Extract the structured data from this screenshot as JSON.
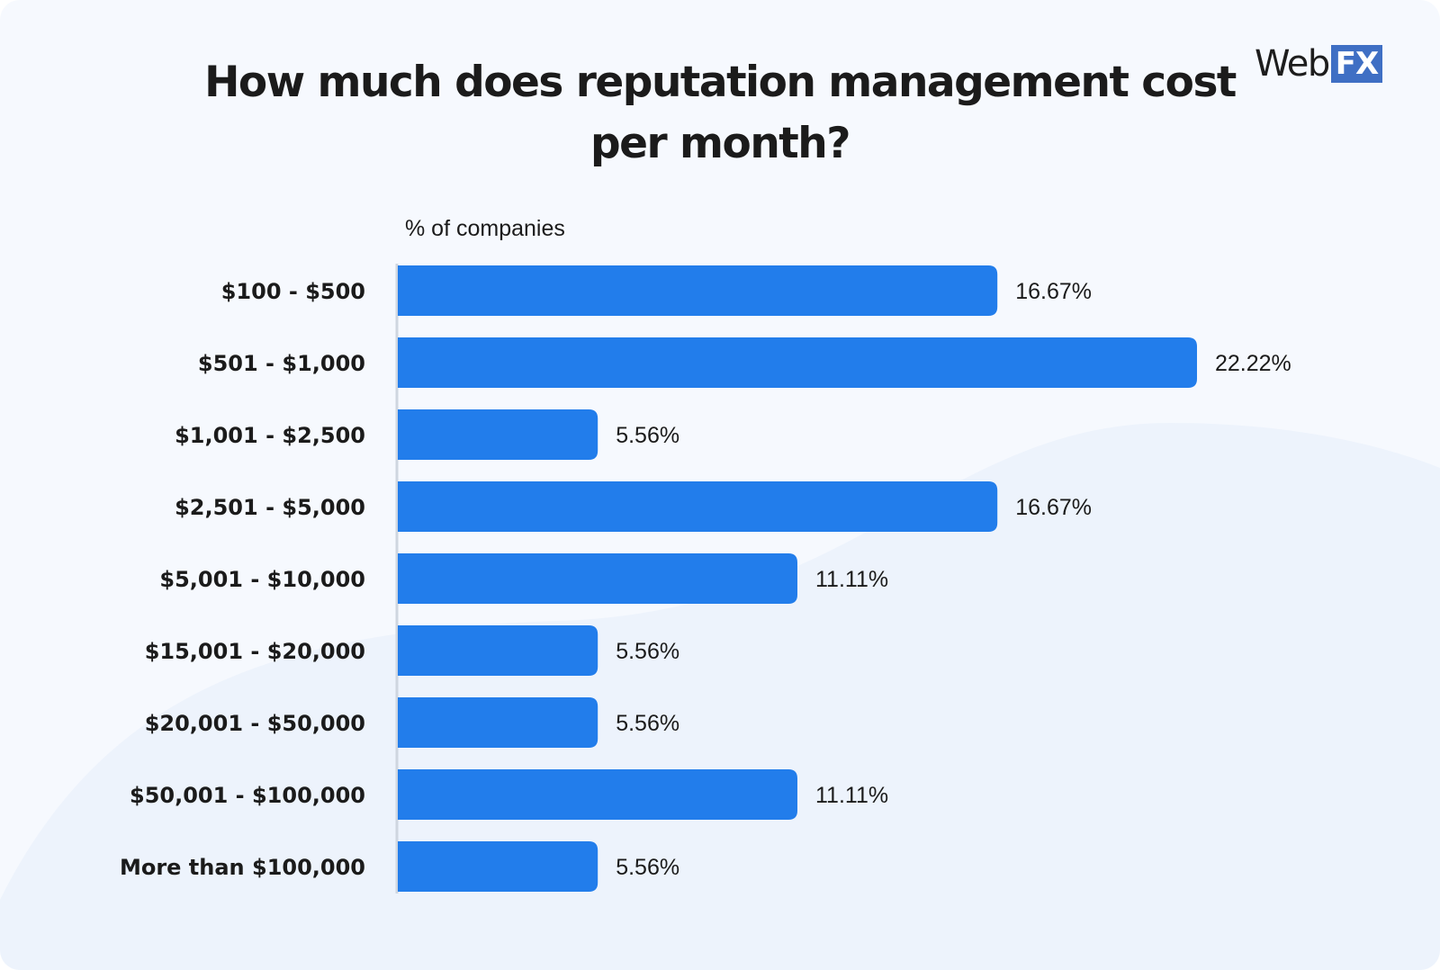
{
  "header": {
    "title": "How much does reputation management cost per month?",
    "logo_web": "Web",
    "logo_fx": "FX"
  },
  "colors": {
    "bar": "#227deb",
    "background": "#f6f9fe",
    "axis": "#cfd6e0",
    "text": "#1b1b1b"
  },
  "chart_data": {
    "type": "bar",
    "orientation": "horizontal",
    "title": "How much does reputation management cost per month?",
    "xlabel": "% of companies",
    "ylabel": "",
    "categories": [
      "$100 - $500",
      "$501 - $1,000",
      "$1,001 - $2,500",
      "$2,501 - $5,000",
      "$5,001 - $10,000",
      "$15,001 - $20,000",
      "$20,001 - $50,000",
      "$50,001 - $100,000",
      "More than $100,000"
    ],
    "values": [
      16.67,
      22.22,
      5.56,
      16.67,
      11.11,
      5.56,
      5.56,
      11.11,
      5.56
    ],
    "value_labels": [
      "16.67%",
      "22.22%",
      "5.56%",
      "16.67%",
      "11.11%",
      "5.56%",
      "5.56%",
      "11.11%",
      "5.56%"
    ],
    "xlim": [
      0,
      22.22
    ],
    "grid": false,
    "legend": "none"
  }
}
